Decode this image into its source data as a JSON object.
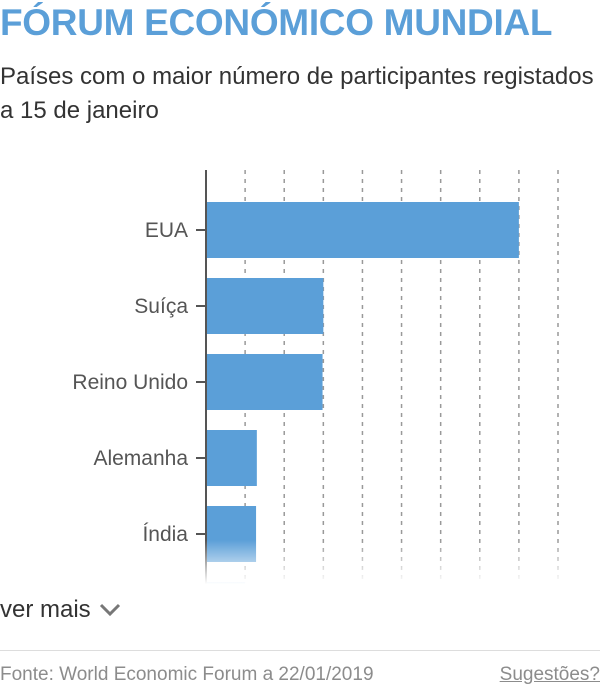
{
  "header": {
    "title": "FÓRUM ECONÓMICO MUNDIAL",
    "subtitle": "Países com o maior número de participantes registados a 15 de janeiro"
  },
  "chart_data": {
    "type": "bar",
    "orientation": "horizontal",
    "categories": [
      "EUA",
      "Suíça",
      "Reino Unido",
      "Alemanha",
      "Índia"
    ],
    "values": [
      800,
      300,
      298,
      130,
      128
    ],
    "xlim": [
      0,
      900
    ],
    "grid": true,
    "grid_style": "dashed-vertical",
    "bar_color": "#5b9fd8",
    "title": "FÓRUM ECONÓMICO MUNDIAL",
    "subtitle": "Países com o maior número de participantes registados a 15 de janeiro",
    "xlabel": "",
    "ylabel": "",
    "truncated": true
  },
  "controls": {
    "more_label": "ver mais",
    "more_icon": "chevron-down-icon"
  },
  "footer": {
    "source": "Fonte: World Economic Forum a 22/01/2019",
    "feedback": "Sugestões?"
  },
  "colors": {
    "accent": "#5b9fd8",
    "text": "#333333",
    "muted": "#8c8c8c",
    "axis": "#555555",
    "grid": "#999999"
  }
}
